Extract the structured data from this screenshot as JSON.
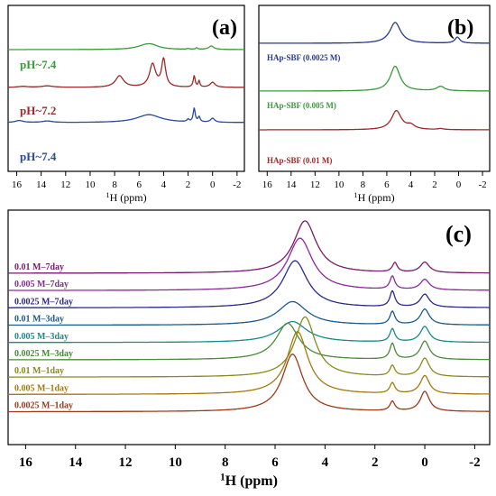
{
  "chart_data": [
    {
      "id": "a",
      "type": "line",
      "panel_label": "(a)",
      "xlabel_sup": "1",
      "xlabel_main": "H (ppm)",
      "xlim": [
        16.7,
        -2.6
      ],
      "x_ticks": [
        16,
        14,
        12,
        10,
        8,
        6,
        4,
        2,
        0,
        -2
      ],
      "x_tick_labels": [
        "16",
        "14",
        "12",
        "10",
        "8",
        "6",
        "4",
        "2",
        "0",
        "-2"
      ],
      "series": [
        {
          "name": "pH~7.4",
          "color": "#3a9a3a",
          "baseline": 0.49,
          "peaks": [
            [
              5.4,
              0.9,
              0.09
            ],
            [
              4.9,
              0.6,
              0.04
            ],
            [
              2.0,
              0.12,
              0.015
            ],
            [
              1.3,
              0.1,
              0.03
            ],
            [
              0.1,
              0.25,
              0.07
            ]
          ]
        },
        {
          "name": "pH~7.2",
          "color": "#9b2a2a",
          "baseline": 0.91,
          "peaks": [
            [
              15.5,
              0.5,
              0.02
            ],
            [
              13.5,
              0.6,
              0.03
            ],
            [
              7.6,
              0.4,
              0.23
            ],
            [
              4.9,
              0.3,
              0.46
            ],
            [
              4.0,
              0.2,
              0.55
            ],
            [
              1.5,
              0.1,
              0.22
            ],
            [
              1.1,
              0.08,
              0.12
            ],
            [
              0.0,
              0.25,
              0.1
            ]
          ]
        },
        {
          "name": "pH~7.4",
          "color": "#2a4a9a",
          "baseline": 1.3,
          "peaks": [
            [
              15.8,
              0.4,
              0.04
            ],
            [
              13.5,
              0.5,
              0.03
            ],
            [
              5.2,
              1.2,
              0.16
            ],
            [
              2.0,
              0.1,
              0.05
            ],
            [
              1.5,
              0.1,
              0.27
            ],
            [
              1.1,
              0.1,
              0.1
            ],
            [
              0.0,
              0.2,
              0.08
            ]
          ]
        }
      ]
    },
    {
      "id": "b",
      "type": "line",
      "panel_label": "(b)",
      "xlabel_sup": "1",
      "xlabel_main": "H (ppm)",
      "xlim": [
        16.7,
        -2.6
      ],
      "x_ticks": [
        16,
        14,
        12,
        10,
        8,
        6,
        4,
        2,
        0,
        -2
      ],
      "x_tick_labels": [
        "16",
        "14",
        "12",
        "10",
        "8",
        "6",
        "4",
        "2",
        "0",
        "-2"
      ],
      "series": [
        {
          "name": "HAp-SBF (0.0025 M)",
          "color": "#2a3a8a",
          "baseline": 0.42,
          "peaks": [
            [
              5.3,
              0.55,
              0.42
            ],
            [
              0.1,
              0.25,
              0.12
            ]
          ]
        },
        {
          "name": "HAp-SBF (0.005 M)",
          "color": "#3a9a3a",
          "baseline": 0.95,
          "peaks": [
            [
              5.3,
              0.5,
              0.5
            ],
            [
              1.5,
              0.4,
              0.09
            ]
          ]
        },
        {
          "name": "HAp-SBF (0.01 M)",
          "color": "#9b2a2a",
          "baseline": 1.38,
          "peaks": [
            [
              5.2,
              0.5,
              0.38
            ],
            [
              4.0,
              0.4,
              0.08
            ],
            [
              1.5,
              0.3,
              0.02
            ]
          ]
        }
      ]
    },
    {
      "id": "c",
      "type": "line",
      "panel_label": "(c)",
      "xlabel_sup": "1",
      "xlabel_main": "H (ppm)",
      "xlim": [
        16.7,
        -2.6
      ],
      "x_ticks": [
        16,
        14,
        12,
        10,
        8,
        6,
        4,
        2,
        0,
        -2
      ],
      "x_tick_labels": [
        "16",
        "14",
        "12",
        "10",
        "8",
        "6",
        "4",
        "2",
        "0",
        "-2"
      ],
      "series": [
        {
          "name": "0.01 M–7day",
          "color": "#7a1a6a",
          "baseline": 0,
          "peaks": [
            [
              4.8,
              0.55,
              1.0
            ],
            [
              1.2,
              0.12,
              0.18
            ],
            [
              0.0,
              0.22,
              0.2
            ]
          ]
        },
        {
          "name": "0.005 M–7day",
          "color": "#8a2a9a",
          "baseline": 1,
          "peaks": [
            [
              5.0,
              0.6,
              1.0
            ],
            [
              1.3,
              0.12,
              0.25
            ],
            [
              0.0,
              0.22,
              0.2
            ]
          ]
        },
        {
          "name": "0.0025 M–7day",
          "color": "#2a2a8a",
          "baseline": 2,
          "peaks": [
            [
              5.2,
              0.6,
              0.9
            ],
            [
              1.3,
              0.12,
              0.3
            ],
            [
              0.0,
              0.22,
              0.25
            ]
          ]
        },
        {
          "name": "0.01 M–3day",
          "color": "#1a5a8a",
          "baseline": 3,
          "peaks": [
            [
              5.3,
              0.7,
              0.45
            ],
            [
              1.3,
              0.12,
              0.25
            ],
            [
              0.0,
              0.22,
              0.3
            ]
          ]
        },
        {
          "name": "0.005 M–3day",
          "color": "#1a8a8a",
          "baseline": 4,
          "peaks": [
            [
              5.3,
              0.7,
              0.4
            ],
            [
              1.3,
              0.12,
              0.25
            ],
            [
              0.0,
              0.22,
              0.3
            ]
          ]
        },
        {
          "name": "0.0025 M–3day",
          "color": "#4a8a3a",
          "baseline": 5,
          "peaks": [
            [
              5.5,
              0.55,
              0.7
            ],
            [
              1.3,
              0.12,
              0.3
            ],
            [
              0.0,
              0.22,
              0.35
            ]
          ]
        },
        {
          "name": "0.01 M–1day",
          "color": "#8a8a1a",
          "baseline": 6,
          "peaks": [
            [
              4.8,
              0.5,
              1.15
            ],
            [
              1.3,
              0.12,
              0.2
            ],
            [
              0.0,
              0.22,
              0.35
            ]
          ]
        },
        {
          "name": "0.005 M–1day",
          "color": "#a07a10",
          "baseline": 7,
          "peaks": [
            [
              5.1,
              0.5,
              1.2
            ],
            [
              1.3,
              0.12,
              0.2
            ],
            [
              0.0,
              0.22,
              0.35
            ]
          ]
        },
        {
          "name": "0.0025 M–1day",
          "color": "#9a3a1a",
          "baseline": 8,
          "peaks": [
            [
              5.3,
              0.5,
              1.1
            ],
            [
              1.3,
              0.12,
              0.18
            ],
            [
              0.0,
              0.22,
              0.38
            ]
          ]
        }
      ]
    }
  ]
}
